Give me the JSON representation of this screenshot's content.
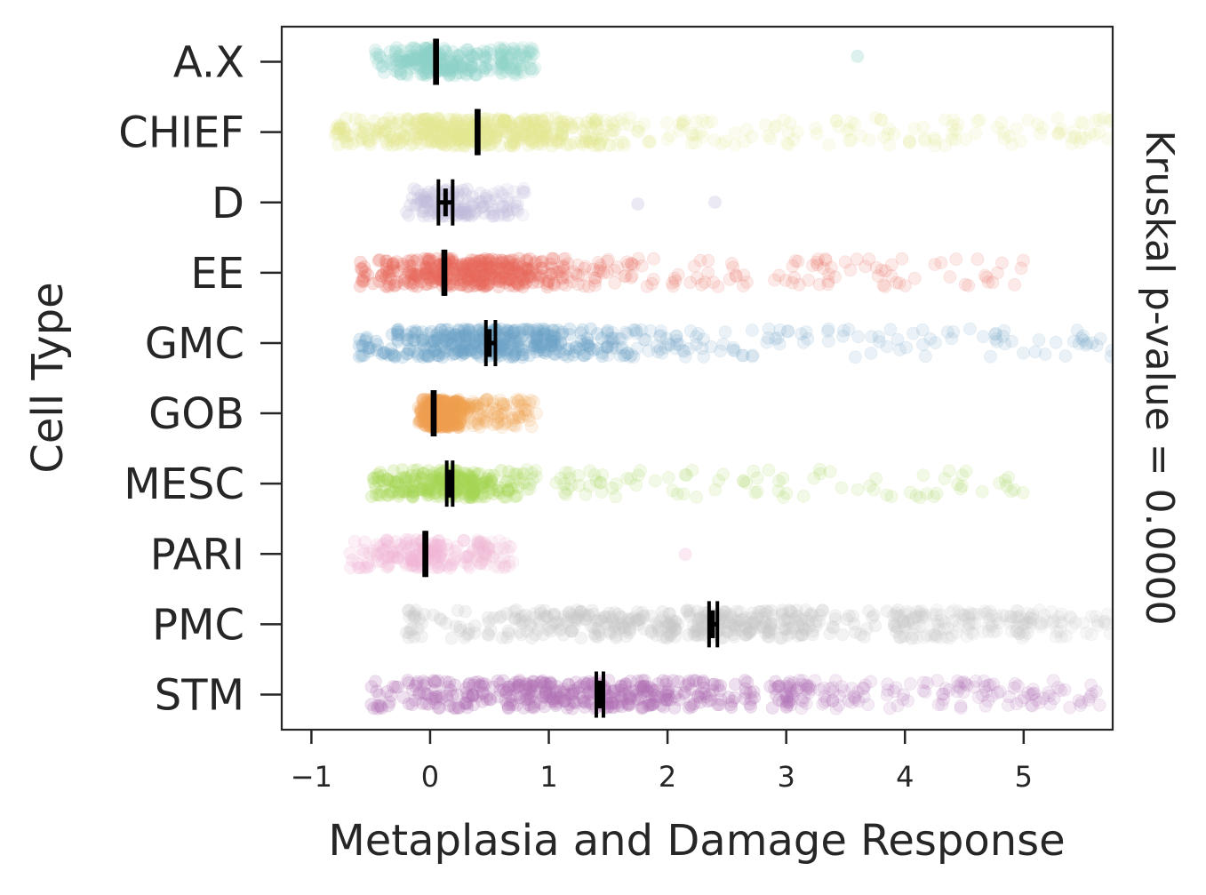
{
  "chart_data": {
    "type": "strip",
    "title": "",
    "xlabel": "Metaplasia and Damage Response",
    "ylabel": "Cell Type",
    "side_label": "Kruskal p-value = 0.0000",
    "xlim": [
      -1.25,
      5.75
    ],
    "xticks": [
      -1,
      0,
      1,
      2,
      3,
      4,
      5
    ],
    "xtick_labels": [
      "−1",
      "0",
      "1",
      "2",
      "3",
      "4",
      "5"
    ],
    "categories": [
      "A.X",
      "CHIEF",
      "D",
      "EE",
      "GMC",
      "GOB",
      "MESC",
      "PARI",
      "PMC",
      "STM"
    ],
    "series": [
      {
        "name": "A.X",
        "color": "#8dd3c7",
        "density": 0.5,
        "core": [
          -0.5,
          0.6
        ],
        "tail": [
          0.6,
          0.9
        ],
        "outliers": [
          3.6
        ],
        "mean": 0.05,
        "ci": [
          0.04,
          0.06
        ]
      },
      {
        "name": "CHIEF",
        "color": "#e3e890",
        "density": 1.0,
        "core": [
          -0.8,
          1.4
        ],
        "tail": [
          1.4,
          5.75
        ],
        "outliers": [],
        "mean": 0.4,
        "ci": [
          0.39,
          0.41
        ]
      },
      {
        "name": "D",
        "color": "#bebada",
        "density": 0.25,
        "core": [
          -0.2,
          0.5
        ],
        "tail": [
          0.5,
          0.8
        ],
        "outliers": [
          1.75,
          2.4
        ],
        "mean": 0.13,
        "ci": [
          0.07,
          0.19
        ]
      },
      {
        "name": "EE",
        "color": "#e8685a",
        "density": 0.85,
        "core": [
          -0.6,
          1.1
        ],
        "tail": [
          1.1,
          5.0
        ],
        "outliers": [],
        "mean": 0.12,
        "ci": [
          0.11,
          0.13
        ]
      },
      {
        "name": "GMC",
        "color": "#6fa3c9",
        "density": 0.9,
        "core": [
          -0.6,
          1.5
        ],
        "tail": [
          1.5,
          5.75
        ],
        "outliers": [],
        "mean": 0.5,
        "ci": [
          0.47,
          0.55
        ]
      },
      {
        "name": "GOB",
        "color": "#f0a050",
        "density": 0.8,
        "core": [
          -0.1,
          0.25
        ],
        "tail": [
          0.25,
          0.9
        ],
        "outliers": [],
        "mean": 0.03,
        "ci": [
          0.02,
          0.04
        ]
      },
      {
        "name": "MESC",
        "color": "#a6d854",
        "density": 0.6,
        "core": [
          -0.5,
          0.8
        ],
        "tail": [
          0.8,
          5.0
        ],
        "outliers": [],
        "mean": 0.16,
        "ci": [
          0.14,
          0.19
        ]
      },
      {
        "name": "PARI",
        "color": "#f2b8d8",
        "density": 0.35,
        "core": [
          -0.7,
          0.4
        ],
        "tail": [
          0.4,
          0.7
        ],
        "outliers": [
          2.15
        ],
        "mean": -0.04,
        "ci": [
          -0.05,
          -0.03
        ]
      },
      {
        "name": "PMC",
        "color": "#c8c8c8",
        "density": 1.0,
        "core": [
          -0.2,
          4.0
        ],
        "tail": [
          4.0,
          5.75
        ],
        "outliers": [],
        "mean": 2.38,
        "ci": [
          2.35,
          2.42
        ]
      },
      {
        "name": "STM",
        "color": "#b070b5",
        "density": 1.0,
        "core": [
          -0.5,
          3.0
        ],
        "tail": [
          3.0,
          5.75
        ],
        "outliers": [],
        "mean": 1.43,
        "ci": [
          1.4,
          1.46
        ]
      }
    ]
  }
}
